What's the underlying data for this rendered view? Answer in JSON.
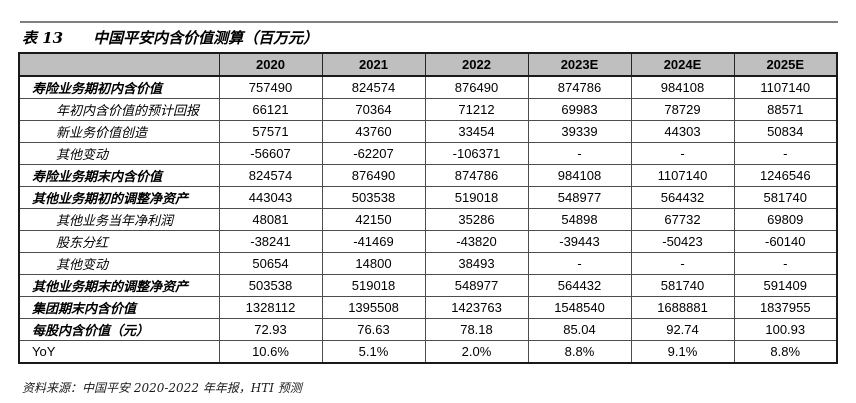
{
  "title": {
    "label": "表 13",
    "text": "中国平安内含价值测算（百万元）"
  },
  "table": {
    "columns": [
      "",
      "2020",
      "2021",
      "2022",
      "2023E",
      "2024E",
      "2025E"
    ],
    "rows": [
      {
        "label": "寿险业务期初内含价值",
        "style": "bold",
        "values": [
          "757490",
          "824574",
          "876490",
          "874786",
          "984108",
          "1107140"
        ]
      },
      {
        "label": "年初内含价值的预计回报",
        "style": "sub",
        "values": [
          "66121",
          "70364",
          "71212",
          "69983",
          "78729",
          "88571"
        ]
      },
      {
        "label": "新业务价值创造",
        "style": "sub",
        "values": [
          "57571",
          "43760",
          "33454",
          "39339",
          "44303",
          "50834"
        ]
      },
      {
        "label": "其他变动",
        "style": "sub",
        "values": [
          "-56607",
          "-62207",
          "-106371",
          "-",
          "-",
          "-"
        ]
      },
      {
        "label": "寿险业务期末内含价值",
        "style": "bold",
        "values": [
          "824574",
          "876490",
          "874786",
          "984108",
          "1107140",
          "1246546"
        ]
      },
      {
        "label": "其他业务期初的调整净资产",
        "style": "bold",
        "values": [
          "443043",
          "503538",
          "519018",
          "548977",
          "564432",
          "581740"
        ]
      },
      {
        "label": "其他业务当年净利润",
        "style": "sub",
        "values": [
          "48081",
          "42150",
          "35286",
          "54898",
          "67732",
          "69809"
        ]
      },
      {
        "label": "股东分红",
        "style": "sub",
        "values": [
          "-38241",
          "-41469",
          "-43820",
          "-39443",
          "-50423",
          "-60140"
        ]
      },
      {
        "label": "其他变动",
        "style": "sub",
        "values": [
          "50654",
          "14800",
          "38493",
          "-",
          "-",
          "-"
        ]
      },
      {
        "label": "其他业务期末的调整净资产",
        "style": "bold",
        "values": [
          "503538",
          "519018",
          "548977",
          "564432",
          "581740",
          "591409"
        ]
      },
      {
        "label": "集团期末内含价值",
        "style": "bold",
        "values": [
          "1328112",
          "1395508",
          "1423763",
          "1548540",
          "1688881",
          "1837955"
        ]
      },
      {
        "label": "每股内含价值（元）",
        "style": "bold",
        "values": [
          "72.93",
          "76.63",
          "78.18",
          "85.04",
          "92.74",
          "100.93"
        ]
      },
      {
        "label": "YoY",
        "style": "plain",
        "values": [
          "10.6%",
          "5.1%",
          "2.0%",
          "8.8%",
          "9.1%",
          "8.8%"
        ]
      }
    ]
  },
  "footer": {
    "source": "资料来源：中国平安 2020-2022 年年报，HTI 预测"
  },
  "colors": {
    "header_bg": "#bfbfbf",
    "border_outer": "#1a1a1a",
    "border_inner": "#4d4d4d",
    "rule": "#7f7f7f",
    "text": "#000000"
  }
}
